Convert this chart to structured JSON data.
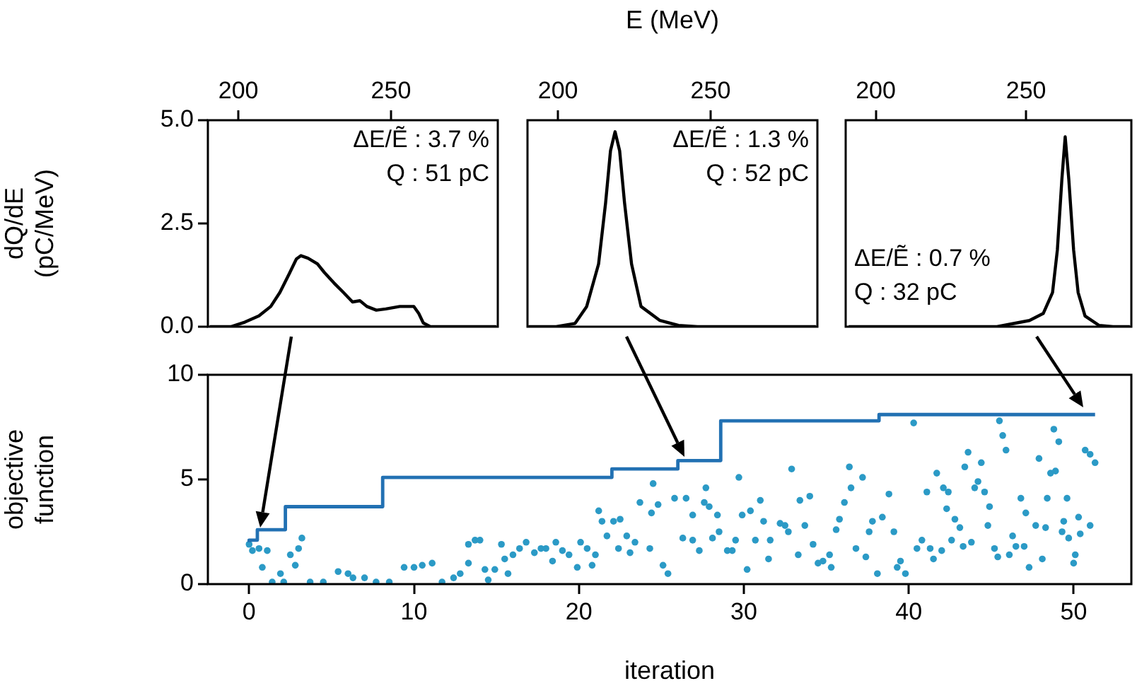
{
  "chart_data": [
    {
      "type": "line",
      "ylabel": "dQ/dE (pC/MeV)",
      "xlim": [
        190,
        285
      ],
      "xticks": [
        200,
        250
      ],
      "ylim": [
        0,
        5
      ],
      "yticks": [
        {
          "value": 0,
          "label": "0.0"
        },
        {
          "value": 2.5,
          "label": "2.5"
        },
        {
          "value": 5,
          "label": "5.0"
        }
      ],
      "annotations": [
        "ΔE/Ẽ : 3.7 %",
        "Q : 51 pC"
      ],
      "series": [
        {
          "color": "#000000",
          "x": [
            190.6,
            197.5,
            202.1,
            206.7,
            210.6,
            213.6,
            216.7,
            219.0,
            220.5,
            222.8,
            225.9,
            228.2,
            231.3,
            234.4,
            237.4,
            239.8,
            242.1,
            245.2,
            248.3,
            252.9,
            257.5,
            259.1,
            260.6,
            262.9,
            284.5
          ],
          "values": [
            0,
            0,
            0.11,
            0.26,
            0.49,
            0.83,
            1.29,
            1.64,
            1.72,
            1.66,
            1.52,
            1.31,
            1.06,
            0.83,
            0.6,
            0.63,
            0.49,
            0.4,
            0.43,
            0.49,
            0.49,
            0.32,
            0.09,
            0,
            0
          ]
        }
      ]
    },
    {
      "type": "line",
      "xlabel": "E (MeV)",
      "tick_labels": "x",
      "xlim": [
        190,
        285
      ],
      "xticks": [
        200,
        250
      ],
      "ylim": [
        0,
        5
      ],
      "annotations": [
        "ΔE/Ẽ : 1.3 %",
        "Q : 52 pC"
      ],
      "series": [
        {
          "color": "#000000",
          "x": [
            190.3,
            199.4,
            205.6,
            209.4,
            213.3,
            215.6,
            217.2,
            218.7,
            220.2,
            221.8,
            224.1,
            227.2,
            233.4,
            239.5,
            245.7,
            284.5
          ],
          "values": [
            0,
            0,
            0.08,
            0.49,
            1.52,
            3.0,
            4.26,
            4.72,
            4.26,
            3.0,
            1.52,
            0.49,
            0.15,
            0.03,
            0,
            0
          ]
        }
      ]
    },
    {
      "type": "line",
      "tick_labels": "x",
      "xlim": [
        190,
        285
      ],
      "xticks": [
        200,
        250
      ],
      "ylim": [
        0,
        5
      ],
      "annotations": [
        "ΔE/Ẽ : 0.7 %",
        "Q : 32 pC"
      ],
      "series": [
        {
          "color": "#000000",
          "x": [
            191,
            240.3,
            251.1,
            255.7,
            258.8,
            260.4,
            261.9,
            263.0,
            264.2,
            265.8,
            267.3,
            269.6,
            274.3,
            278.9,
            284.5
          ],
          "values": [
            0,
            0,
            0.15,
            0.32,
            0.83,
            1.86,
            3.57,
            4.6,
            3.57,
            1.86,
            0.83,
            0.26,
            0.03,
            0,
            0
          ]
        }
      ]
    },
    {
      "type": "step",
      "xlabel": "iteration",
      "ylabel": "objective function",
      "xlim": [
        -2.5,
        53.5
      ],
      "xticks": [
        0,
        10,
        20,
        30,
        40,
        50
      ],
      "ylim": [
        0,
        10
      ],
      "yticks": [
        0,
        5,
        10
      ],
      "series": [
        {
          "marker": "none",
          "color": "#2271b3",
          "x": [
            0,
            0.5,
            2.2,
            8.1,
            22,
            26,
            28.6,
            38.2,
            50.5,
            51.3
          ],
          "values": [
            2.0,
            2.1,
            2.6,
            3.7,
            5.1,
            5.5,
            5.9,
            7.8,
            8.1,
            8.1
          ]
        },
        {
          "type": "scatter",
          "marker": "circle",
          "color": "#2b9ac6",
          "x": [
            0,
            0.2,
            0.6,
            1.1,
            0.8,
            1.9,
            2.5,
            2.8,
            3.0,
            3.2,
            1.4,
            2.1,
            3.7,
            4.5,
            5.4,
            6.0,
            6.3,
            7.0,
            7.7,
            8.5,
            9.4,
            10.0,
            10.5,
            11.1,
            11.7,
            12.4,
            12.8,
            13.3,
            13.3,
            13.7,
            14.0,
            14.3,
            14.5,
            14.9,
            15.3,
            15.5,
            15.7,
            16.0,
            16.4,
            16.8,
            17.3,
            17.7,
            18.0,
            18.4,
            18.6,
            19.0,
            19.4,
            19.9,
            20.1,
            20.5,
            20.8,
            21.0,
            21.2,
            21.4,
            21.7,
            22.1,
            22.5,
            22.4,
            22.9,
            23.1,
            23.4,
            23.7,
            24.3,
            24.4,
            24.8,
            24.5,
            25.1,
            25.4,
            25.8,
            26.5,
            26.9,
            26.3,
            26.9,
            27.3,
            27.7,
            27.6,
            27.9,
            28.1,
            28.4,
            28.5,
            29.0,
            29.3,
            29.5,
            29.7,
            29.9,
            30.4,
            30.2,
            30.7,
            31.0,
            31.2,
            31.5,
            31.6,
            32.2,
            32.5,
            32.7,
            32.9,
            33.3,
            33.4,
            33.7,
            34.0,
            34.2,
            34.5,
            34.8,
            35.2,
            35.3,
            35.6,
            35.8,
            36.1,
            36.4,
            36.5,
            36.8,
            37.2,
            37.4,
            37.6,
            37.8,
            38.1,
            38.4,
            38.8,
            39.1,
            39.3,
            39.5,
            39.8,
            40.3,
            40.5,
            40.8,
            41.1,
            41.3,
            41.5,
            41.7,
            42.0,
            42.1,
            42.3,
            42.4,
            42.6,
            42.8,
            43.1,
            43.3,
            43.4,
            43.6,
            43.8,
            44.0,
            44.2,
            44.4,
            44.6,
            44.8,
            44.9,
            45.2,
            45.4,
            45.5,
            45.7,
            45.9,
            46.1,
            46.3,
            46.5,
            46.8,
            47.0,
            47.1,
            47.3,
            47.7,
            47.9,
            48.1,
            48.3,
            48.4,
            48.6,
            48.8,
            48.9,
            49.1,
            49.3,
            49.4,
            49.6,
            49.7,
            50.0,
            50.1,
            50.3,
            50.4,
            50.7,
            51.0,
            51.0,
            51.3
          ],
          "values": [
            1.9,
            1.6,
            1.7,
            1.6,
            0.8,
            0.5,
            1.4,
            0.9,
            1.7,
            2.2,
            0.1,
            0.1,
            0.1,
            0.1,
            0.6,
            0.5,
            0.3,
            0.3,
            0.1,
            0.1,
            0.8,
            0.8,
            0.9,
            1.0,
            0.1,
            0.3,
            0.5,
            1.0,
            1.9,
            2.1,
            2.1,
            0.7,
            0.2,
            0.7,
            1.9,
            1.2,
            0.5,
            1.4,
            1.7,
            2.0,
            1.5,
            1.7,
            1.7,
            1.1,
            2.0,
            1.6,
            1.4,
            0.8,
            2.0,
            1.7,
            0.9,
            1.4,
            3.5,
            3.0,
            2.3,
            3.0,
            3.1,
            1.7,
            2.3,
            1.5,
            2.0,
            3.9,
            1.7,
            3.4,
            3.8,
            4.8,
            0.9,
            0.5,
            4.1,
            4.1,
            3.3,
            2.2,
            2.1,
            1.6,
            4.6,
            3.9,
            3.7,
            2.2,
            3.3,
            2.5,
            1.6,
            1.6,
            2.1,
            5.1,
            3.3,
            3.5,
            0.7,
            2.1,
            4.0,
            3.0,
            1.2,
            2.1,
            2.9,
            2.8,
            2.5,
            5.5,
            1.4,
            4.0,
            2.8,
            4.2,
            1.9,
            1.0,
            1.1,
            1.4,
            0.8,
            2.6,
            3.1,
            3.9,
            5.6,
            4.6,
            1.7,
            5.1,
            1.3,
            2.5,
            3.0,
            0.5,
            3.2,
            4.3,
            2.5,
            0.8,
            1.1,
            0.5,
            7.7,
            1.7,
            2.1,
            4.4,
            1.7,
            1.2,
            5.3,
            1.6,
            4.6,
            3.6,
            4.4,
            2.1,
            3.1,
            2.7,
            1.8,
            5.6,
            6.3,
            2.0,
            4.6,
            4.9,
            5.8,
            4.4,
            2.8,
            3.7,
            1.7,
            1.3,
            7.8,
            7.1,
            6.4,
            1.4,
            2.3,
            1.8,
            4.1,
            1.8,
            3.4,
            0.8,
            2.8,
            6.0,
            1.2,
            2.7,
            4.1,
            5.3,
            7.4,
            5.4,
            6.8,
            2.5,
            3.0,
            4.1,
            2.2,
            1.0,
            1.4,
            3.2,
            2.4,
            6.4,
            2.8,
            6.2,
            5.8
          ]
        }
      ]
    }
  ]
}
